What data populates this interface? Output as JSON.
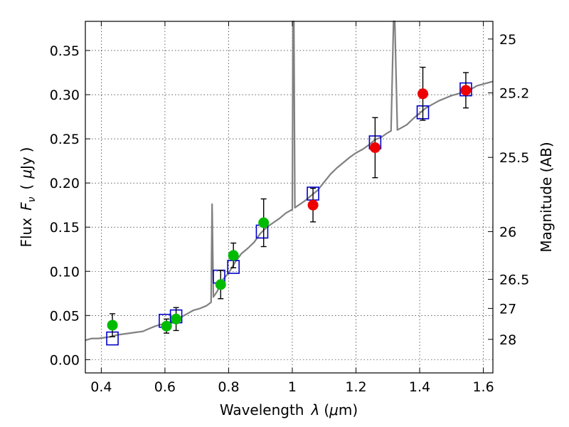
{
  "chart_data": {
    "type": "scatter",
    "xlabel": "Wavelength",
    "xlabel_symbol": "λ",
    "xlabel_unit_open": "(",
    "xlabel_unit_mu": "μ",
    "xlabel_unit_rest": "m)",
    "ylabel": "Flux",
    "ylabel_symbol": "F",
    "ylabel_subscript": "ν",
    "ylabel_unit_open": "(",
    "ylabel_unit_mu": "μ",
    "ylabel_unit_rest": "Jy",
    "ylabel_unit_close": ")",
    "y2label": "Magnitude (AB)",
    "xlim": [
      0.35,
      1.63
    ],
    "ylim": [
      -0.015,
      0.383
    ],
    "grid": true,
    "xticks": [
      0.4,
      0.6,
      0.8,
      1.0,
      1.2,
      1.4,
      1.6
    ],
    "xtick_labels": [
      "0.4",
      "0.6",
      "0.8",
      "1",
      "1.2",
      "1.4",
      "1.6"
    ],
    "yticks": [
      0.0,
      0.05,
      0.1,
      0.15,
      0.2,
      0.25,
      0.3,
      0.35
    ],
    "ytick_labels": [
      "0.00",
      "0.05",
      "0.10",
      "0.15",
      "0.20",
      "0.25",
      "0.30",
      "0.35"
    ],
    "y2ticks": [
      {
        "label": "25",
        "flux": 0.363
      },
      {
        "label": "25.2",
        "flux": 0.302
      },
      {
        "label": "25.5",
        "flux": 0.229
      },
      {
        "label": "26",
        "flux": 0.145
      },
      {
        "label": "26.5",
        "flux": 0.091
      },
      {
        "label": "27",
        "flux": 0.058
      },
      {
        "label": "28",
        "flux": 0.023
      }
    ],
    "colors": {
      "spectrum": "#808080",
      "model": "#0000cc",
      "green": "#00bb00",
      "red": "#ee0000",
      "errorbar": "#000000"
    },
    "spectrum": [
      [
        0.35,
        0.022
      ],
      [
        0.37,
        0.024
      ],
      [
        0.39,
        0.024
      ],
      [
        0.41,
        0.025
      ],
      [
        0.43,
        0.026
      ],
      [
        0.45,
        0.028
      ],
      [
        0.47,
        0.029
      ],
      [
        0.49,
        0.03
      ],
      [
        0.51,
        0.031
      ],
      [
        0.53,
        0.032
      ],
      [
        0.55,
        0.035
      ],
      [
        0.57,
        0.038
      ],
      [
        0.59,
        0.04
      ],
      [
        0.61,
        0.041
      ],
      [
        0.63,
        0.045
      ],
      [
        0.65,
        0.048
      ],
      [
        0.67,
        0.052
      ],
      [
        0.69,
        0.056
      ],
      [
        0.71,
        0.058
      ],
      [
        0.73,
        0.061
      ],
      [
        0.745,
        0.065
      ],
      [
        0.748,
        0.176
      ],
      [
        0.752,
        0.071
      ],
      [
        0.765,
        0.078
      ],
      [
        0.78,
        0.09
      ],
      [
        0.8,
        0.098
      ],
      [
        0.82,
        0.11
      ],
      [
        0.84,
        0.12
      ],
      [
        0.86,
        0.126
      ],
      [
        0.88,
        0.133
      ],
      [
        0.9,
        0.143
      ],
      [
        0.92,
        0.15
      ],
      [
        0.94,
        0.155
      ],
      [
        0.96,
        0.16
      ],
      [
        0.98,
        0.166
      ],
      [
        1.0,
        0.17
      ],
      [
        1.002,
        0.383
      ],
      [
        1.005,
        0.383
      ],
      [
        1.008,
        0.172
      ],
      [
        1.02,
        0.175
      ],
      [
        1.04,
        0.18
      ],
      [
        1.06,
        0.186
      ],
      [
        1.08,
        0.192
      ],
      [
        1.1,
        0.201
      ],
      [
        1.12,
        0.21
      ],
      [
        1.14,
        0.217
      ],
      [
        1.16,
        0.223
      ],
      [
        1.18,
        0.229
      ],
      [
        1.2,
        0.234
      ],
      [
        1.22,
        0.238
      ],
      [
        1.24,
        0.243
      ],
      [
        1.26,
        0.249
      ],
      [
        1.28,
        0.252
      ],
      [
        1.3,
        0.257
      ],
      [
        1.31,
        0.259
      ],
      [
        1.318,
        0.383
      ],
      [
        1.322,
        0.383
      ],
      [
        1.33,
        0.26
      ],
      [
        1.34,
        0.262
      ],
      [
        1.36,
        0.266
      ],
      [
        1.38,
        0.273
      ],
      [
        1.4,
        0.279
      ],
      [
        1.42,
        0.285
      ],
      [
        1.44,
        0.289
      ],
      [
        1.46,
        0.293
      ],
      [
        1.48,
        0.296
      ],
      [
        1.5,
        0.299
      ],
      [
        1.52,
        0.301
      ],
      [
        1.54,
        0.303
      ],
      [
        1.56,
        0.306
      ],
      [
        1.58,
        0.31
      ],
      [
        1.6,
        0.312
      ],
      [
        1.63,
        0.315
      ]
    ],
    "model_points": [
      {
        "x": 0.435,
        "y": 0.024
      },
      {
        "x": 0.6,
        "y": 0.044
      },
      {
        "x": 0.635,
        "y": 0.049
      },
      {
        "x": 0.77,
        "y": 0.094
      },
      {
        "x": 0.815,
        "y": 0.105
      },
      {
        "x": 0.905,
        "y": 0.145
      },
      {
        "x": 1.065,
        "y": 0.188
      },
      {
        "x": 1.26,
        "y": 0.246
      },
      {
        "x": 1.41,
        "y": 0.28
      },
      {
        "x": 1.545,
        "y": 0.306
      }
    ],
    "series": [
      {
        "color": "green",
        "points": [
          {
            "x": 0.435,
            "y": 0.039,
            "err": 0.013
          },
          {
            "x": 0.605,
            "y": 0.038,
            "err": 0.008
          },
          {
            "x": 0.635,
            "y": 0.046,
            "err": 0.013
          },
          {
            "x": 0.775,
            "y": 0.085,
            "err": 0.016
          },
          {
            "x": 0.815,
            "y": 0.118,
            "err": 0.014
          },
          {
            "x": 0.91,
            "y": 0.155,
            "err": 0.027
          }
        ]
      },
      {
        "color": "red",
        "points": [
          {
            "x": 1.065,
            "y": 0.175,
            "err": 0.019
          },
          {
            "x": 1.26,
            "y": 0.24,
            "err": 0.034
          },
          {
            "x": 1.41,
            "y": 0.301,
            "err": 0.03
          },
          {
            "x": 1.545,
            "y": 0.305,
            "err": 0.02
          }
        ]
      }
    ]
  }
}
